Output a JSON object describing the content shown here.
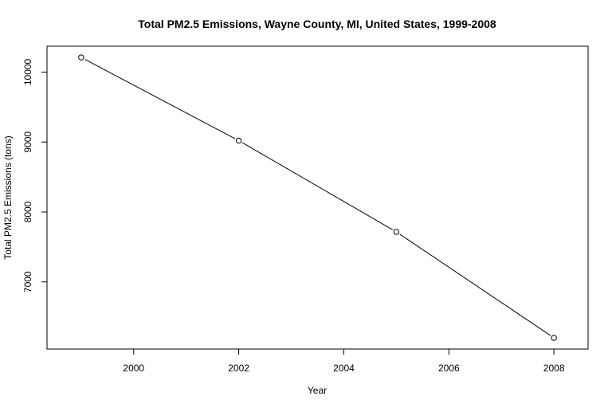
{
  "chart_data": {
    "type": "line",
    "title": "Total PM2.5 Emissions, Wayne County, MI, United States, 1999-2008",
    "xlabel": "Year",
    "ylabel": "Total PM2.5 Emissions (tons)",
    "x": [
      1999,
      2002,
      2005,
      2008
    ],
    "series": [
      {
        "values": [
          10210,
          9020,
          7715,
          6200
        ]
      }
    ],
    "xlim": [
      1998.35,
      2008.65
    ],
    "ylim": [
      6040,
      10370
    ],
    "xticks": [
      2000,
      2002,
      2004,
      2006,
      2008
    ],
    "yticks": [
      7000,
      8000,
      9000,
      10000
    ],
    "xtick_labels": [
      "2000",
      "2002",
      "2004",
      "2006",
      "2008"
    ],
    "ytick_labels": [
      "7000",
      "8000",
      "9000",
      "10000"
    ],
    "marker": "open-circle",
    "line_color": "#000000",
    "grid": false,
    "legend": "none"
  }
}
